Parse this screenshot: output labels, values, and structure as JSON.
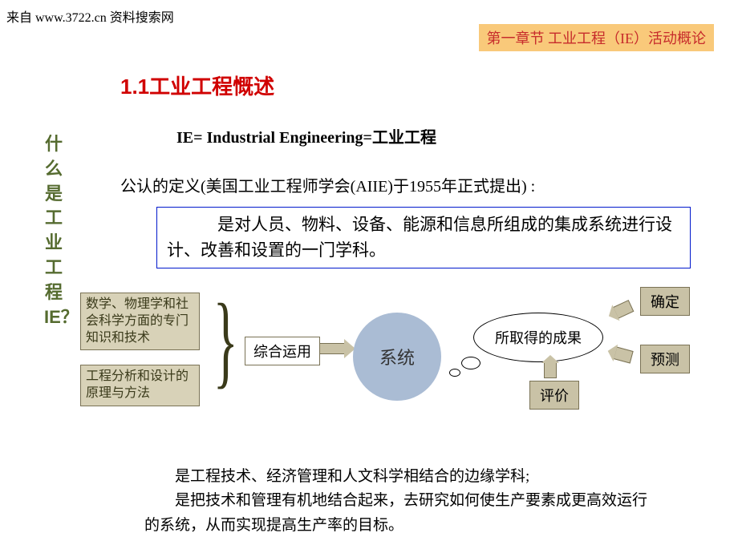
{
  "source": "来自 www.3722.cn 资料搜索网",
  "chapter_banner": "第一章节 工业工程（IE）活动概论",
  "title": "1.1工业工程慨述",
  "vertical_label": "什么是工业工程IE？",
  "ie_equation": "IE= Industrial Engineering=工业工程",
  "recognized_def": "公认的定义(美国工业工程师学会(AIIE)于1955年正式提出) :",
  "blue_box_text": "　　　是对人员、物料、设备、能源和信息所组成的集成系统进行设计、改善和设置的一门学科。",
  "inputs": {
    "top": "数学、物理学和社会科学方面的专门知识和技术",
    "bottom": "工程分析和设计的原理与方法"
  },
  "combine": "综合运用",
  "system": "系统",
  "speech": "所取得的成果",
  "results": {
    "determine": "确定",
    "predict": "预测",
    "evaluate": "评价"
  },
  "bottom_text": "　　是工程技术、经济管理和人文科学相结合的边缘学科;\n　　是把技术和管理有机地结合起来，去研究如何使生产要素成更高效运行的系统，从而实现提高生产率的目标。",
  "colors": {
    "banner_bg": "#f9c97a",
    "banner_fg": "#c72c2c",
    "title_red": "#d00000",
    "olive": "#556b2f",
    "box_bg": "#d8d2b8",
    "box_border": "#7a7255",
    "circle_bg": "#aabcd4",
    "blue_border": "#0018cc",
    "result_bg": "#c9c2a6"
  }
}
